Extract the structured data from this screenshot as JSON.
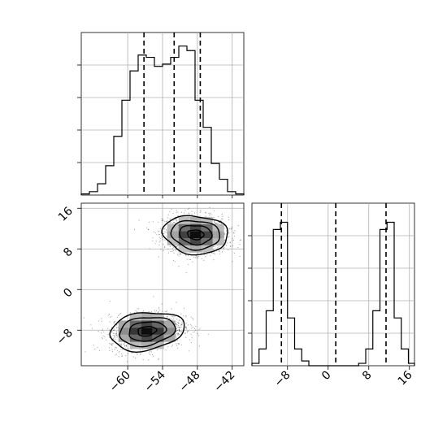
{
  "chart_data": [
    {
      "type": "histogram",
      "panel": "top-left marginal",
      "variable_index": 0,
      "xlim": [
        -68,
        -40
      ],
      "bins": [
        -68,
        -66.6,
        -65.2,
        -63.8,
        -62.4,
        -61,
        -59.6,
        -58.2,
        -56.8,
        -55.4,
        -54,
        -52.6,
        -51.2,
        -49.8,
        -48.4,
        -47,
        -45.6,
        -44.2,
        -42.8,
        -41.4,
        -40
      ],
      "counts": [
        0.5,
        1.5,
        5,
        13,
        26,
        42,
        55,
        62,
        61,
        57,
        58,
        61,
        66,
        64,
        42,
        30,
        14,
        7,
        1.5,
        0.5
      ],
      "ylim": [
        0,
        72
      ],
      "quantiles": [
        -57.2,
        -52.0,
        -47.5
      ],
      "grid": true
    },
    {
      "type": "heatmap",
      "panel": "bottom-left 2d density",
      "x_variable_index": 0,
      "y_variable_index": 1,
      "xlim": [
        -68,
        -40
      ],
      "ylim": [
        -15,
        17
      ],
      "xticks": [
        "−60",
        "−54",
        "−48",
        "−42"
      ],
      "yticks": [
        "16",
        "8",
        "0",
        "−8"
      ],
      "modes": [
        {
          "center": [
            -48.3,
            10.8
          ],
          "sx": 2.8,
          "sy": 1.9,
          "rho": -0.1
        },
        {
          "center": [
            -56.7,
            -8.2
          ],
          "sx": 3.2,
          "sy": 1.9,
          "rho": 0.2
        }
      ],
      "contour_levels": 4,
      "grid": true
    },
    {
      "type": "histogram",
      "panel": "bottom-right marginal",
      "variable_index": 1,
      "xlim": [
        -15,
        17
      ],
      "bins": [
        -15,
        -13.6,
        -12.2,
        -10.8,
        -9.4,
        -8,
        -6.6,
        -5.2,
        -3.8,
        -2.4,
        -1,
        0.4,
        1.8,
        3.2,
        4.6,
        6,
        7.4,
        8.8,
        10.2,
        11.6,
        13,
        14.4,
        15.8,
        17
      ],
      "counts": [
        1,
        7,
        23,
        57,
        60,
        20,
        7,
        2,
        0,
        0,
        0,
        0,
        0,
        0,
        0,
        1,
        7,
        23,
        57,
        60,
        20,
        7,
        1
      ],
      "ylim": [
        0,
        68
      ],
      "quantiles": [
        -9.2,
        1.5,
        11.4
      ],
      "xticks": [
        "−8",
        "0",
        "8",
        "16"
      ],
      "grid": true
    }
  ]
}
